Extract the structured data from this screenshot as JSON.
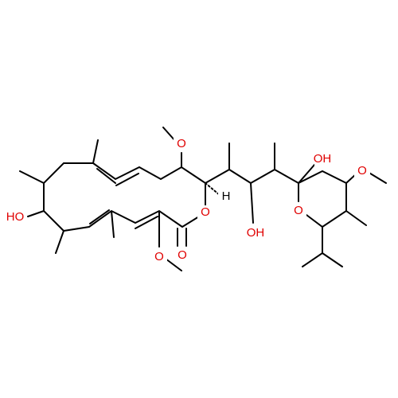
{
  "atoms": [
    "O",
    "H",
    "OH",
    "OH",
    "O",
    "O",
    "O",
    "O",
    "O",
    "HO"
  ]
}
